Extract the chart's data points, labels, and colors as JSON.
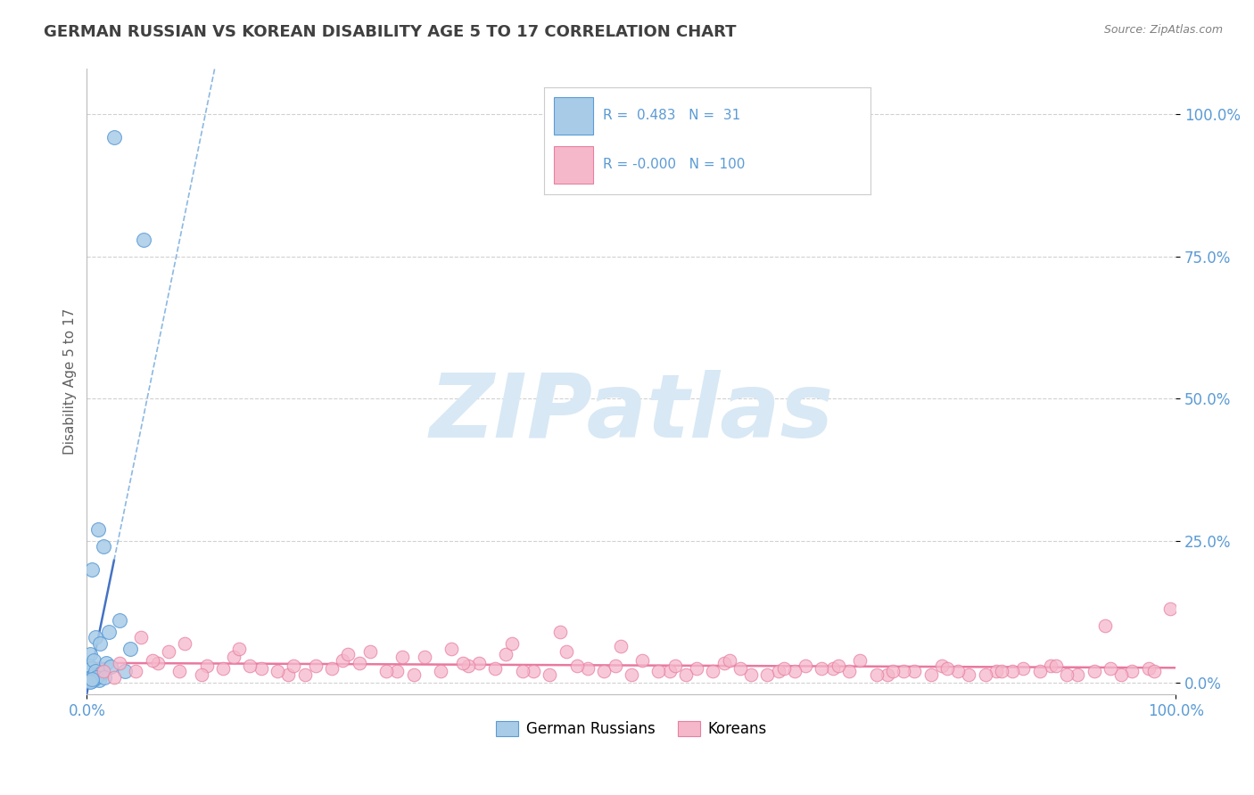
{
  "title": "GERMAN RUSSIAN VS KOREAN DISABILITY AGE 5 TO 17 CORRELATION CHART",
  "source": "Source: ZipAtlas.com",
  "ylabel": "Disability Age 5 to 17",
  "ytick_labels": [
    "0.0%",
    "25.0%",
    "50.0%",
    "75.0%",
    "100.0%"
  ],
  "ytick_values": [
    0,
    25,
    50,
    75,
    100
  ],
  "xlim": [
    0,
    100
  ],
  "ylim": [
    -2,
    108
  ],
  "legend_label1": "German Russians",
  "legend_label2": "Koreans",
  "r1": 0.483,
  "n1": 31,
  "r2": -0.0,
  "n2": 100,
  "blue_color": "#A8CCE8",
  "pink_color": "#F5B8CB",
  "blue_edge_color": "#5B9BD5",
  "pink_edge_color": "#E87FA0",
  "blue_line_color": "#4472C4",
  "pink_line_color": "#E879A0",
  "title_color": "#404040",
  "source_color": "#808080",
  "axis_tick_color": "#5B9BD5",
  "ylabel_color": "#606060",
  "background_color": "#FFFFFF",
  "grid_color": "#CCCCCC",
  "watermark_color": "#D8E8F5",
  "watermark_text": "ZIPatlas",
  "blue_scatter_x": [
    2.5,
    5.2,
    1.0,
    1.5,
    0.5,
    0.3,
    0.8,
    1.2,
    2.0,
    3.0,
    0.2,
    0.4,
    0.6,
    0.9,
    1.8,
    4.0,
    0.15,
    0.35,
    0.55,
    0.75,
    1.1,
    1.4,
    2.2,
    0.25,
    0.65,
    0.85,
    1.6,
    3.5,
    0.45,
    0.3,
    0.5
  ],
  "blue_scatter_y": [
    96.0,
    78.0,
    27.0,
    24.0,
    20.0,
    5.0,
    8.0,
    7.0,
    9.0,
    11.0,
    3.0,
    2.5,
    4.0,
    1.5,
    3.5,
    6.0,
    0.8,
    1.0,
    1.2,
    2.0,
    0.5,
    1.8,
    2.8,
    0.3,
    0.6,
    0.9,
    1.0,
    2.0,
    0.4,
    0.2,
    0.7
  ],
  "pink_scatter_x": [
    1.5,
    3.0,
    5.0,
    7.5,
    9.0,
    11.0,
    13.5,
    16.0,
    18.5,
    21.0,
    23.5,
    26.0,
    28.5,
    31.0,
    33.5,
    36.0,
    38.5,
    41.0,
    43.5,
    46.0,
    48.5,
    51.0,
    53.5,
    56.0,
    58.5,
    61.0,
    63.5,
    66.0,
    68.5,
    71.0,
    73.5,
    76.0,
    78.5,
    81.0,
    83.5,
    86.0,
    88.5,
    91.0,
    93.5,
    96.0,
    2.5,
    4.5,
    6.5,
    8.5,
    10.5,
    12.5,
    15.0,
    17.5,
    20.0,
    22.5,
    25.0,
    27.5,
    30.0,
    32.5,
    35.0,
    37.5,
    40.0,
    42.5,
    45.0,
    47.5,
    50.0,
    52.5,
    55.0,
    57.5,
    60.0,
    62.5,
    65.0,
    67.5,
    70.0,
    72.5,
    75.0,
    77.5,
    80.0,
    82.5,
    85.0,
    87.5,
    90.0,
    92.5,
    95.0,
    97.5,
    6.0,
    14.0,
    19.0,
    24.0,
    29.0,
    34.5,
    39.0,
    44.0,
    49.0,
    54.0,
    59.0,
    64.0,
    69.0,
    74.0,
    79.0,
    84.0,
    89.0,
    94.0,
    98.0,
    99.5
  ],
  "pink_scatter_y": [
    2.0,
    3.5,
    8.0,
    5.5,
    7.0,
    3.0,
    4.5,
    2.5,
    1.5,
    3.0,
    4.0,
    5.5,
    2.0,
    4.5,
    6.0,
    3.5,
    5.0,
    2.0,
    9.0,
    2.5,
    3.0,
    4.0,
    2.0,
    2.5,
    3.5,
    1.5,
    2.0,
    3.0,
    2.5,
    4.0,
    1.5,
    2.0,
    3.0,
    1.5,
    2.0,
    2.5,
    3.0,
    1.5,
    10.0,
    2.0,
    1.0,
    2.0,
    3.5,
    2.0,
    1.5,
    2.5,
    3.0,
    2.0,
    1.5,
    2.5,
    3.5,
    2.0,
    1.5,
    2.0,
    3.0,
    2.5,
    2.0,
    1.5,
    3.0,
    2.0,
    1.5,
    2.0,
    1.5,
    2.0,
    2.5,
    1.5,
    2.0,
    2.5,
    2.0,
    1.5,
    2.0,
    1.5,
    2.0,
    1.5,
    2.0,
    2.0,
    1.5,
    2.0,
    1.5,
    2.5,
    4.0,
    6.0,
    3.0,
    5.0,
    4.5,
    3.5,
    7.0,
    5.5,
    6.5,
    3.0,
    4.0,
    2.5,
    3.0,
    2.0,
    2.5,
    2.0,
    3.0,
    2.5,
    2.0,
    13.0
  ]
}
